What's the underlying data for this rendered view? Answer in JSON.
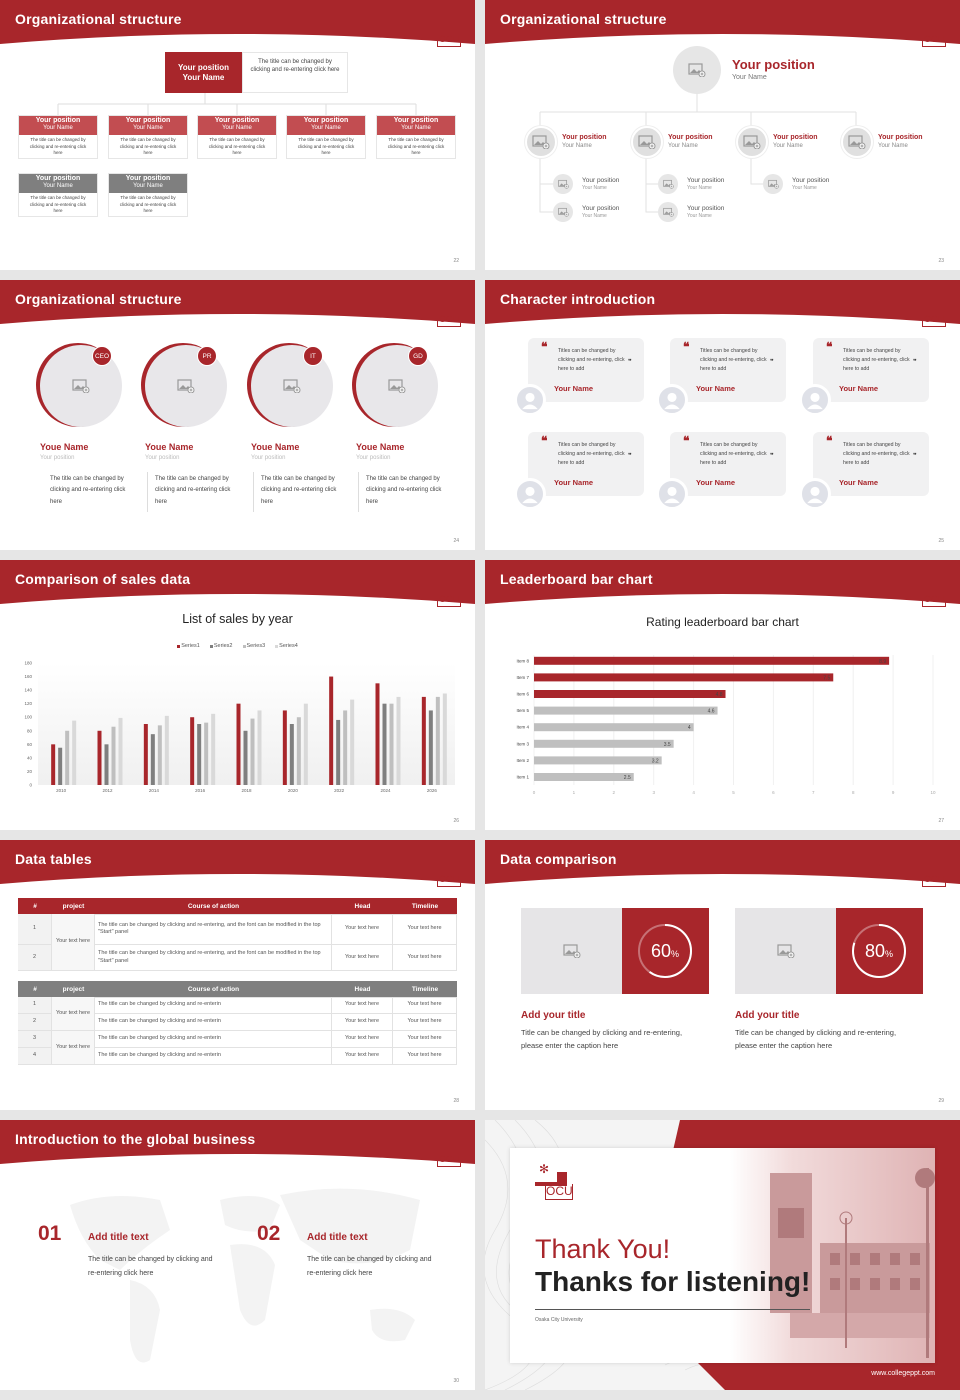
{
  "colors": {
    "primary": "#a8262b",
    "primary_light": "#c24d51",
    "gray": "#7f7f7f",
    "light_gray": "#bfbfbf"
  },
  "logo_text": "OCU",
  "s22": {
    "title": "Organizational structure",
    "page": "22",
    "top": {
      "position": "Your position",
      "name": "Your Name",
      "desc": "The title can be changed by clicking and re-entering click here"
    },
    "row1": [
      {
        "position": "Your position",
        "name": "Your Name",
        "desc": "The title can be changed by clicking and re-entering click here"
      },
      {
        "position": "Your position",
        "name": "Your Name",
        "desc": "The title can be changed by clicking and re-entering click here"
      },
      {
        "position": "Your position",
        "name": "Your Name",
        "desc": "The title can be changed by clicking and re-entering click here"
      },
      {
        "position": "Your position",
        "name": "Your Name",
        "desc": "The title can be changed by clicking and re-entering click here"
      },
      {
        "position": "Your position",
        "name": "Your Name",
        "desc": "The title can be changed by clicking and re-entering click here"
      }
    ],
    "row2": [
      {
        "position": "Your position",
        "name": "Your Name",
        "desc": "The title can be changed by clicking and re-entering click here"
      },
      {
        "position": "Your position",
        "name": "Your Name",
        "desc": "The title can be changed by clicking and re-entering click here"
      }
    ]
  },
  "s23": {
    "title": "Organizational structure",
    "page": "23",
    "top": {
      "position": "Your position",
      "name": "Your Name"
    },
    "level2": [
      {
        "position": "Your position",
        "name": "Your Name"
      },
      {
        "position": "Your position",
        "name": "Your Name"
      },
      {
        "position": "Your position",
        "name": "Your Name"
      },
      {
        "position": "Your position",
        "name": "Your Name"
      }
    ],
    "level3": [
      {
        "position": "Your position",
        "name": "Your Name"
      },
      {
        "position": "Your position",
        "name": "Your Name"
      },
      {
        "position": "Your position",
        "name": "Your Name"
      },
      {
        "position": "Your position",
        "name": "Your Name"
      },
      {
        "position": "Your position",
        "name": "Your Name"
      }
    ]
  },
  "s24": {
    "title": "Organizational structure",
    "page": "24",
    "people": [
      {
        "badge": "CEO",
        "name": "Youe Name",
        "position": "Your position",
        "desc": "The title can be changed by clicking and re-entering click here"
      },
      {
        "badge": "PR",
        "name": "Youe Name",
        "position": "Your position",
        "desc": "The title can be changed by clicking and re-entering click here"
      },
      {
        "badge": "IT",
        "name": "Youe Name",
        "position": "Your position",
        "desc": "The title can be changed by clicking and re-entering click here"
      },
      {
        "badge": "GD",
        "name": "Youe Name",
        "position": "Your position",
        "desc": "The title can be changed by clicking and re-entering click here"
      }
    ]
  },
  "s25": {
    "title": "Character introduction",
    "page": "25",
    "cards": [
      {
        "quote": "Titles can be changed by clicking and re-entering, click here to add",
        "name": "Your Name"
      },
      {
        "quote": "Titles can be changed by clicking and re-entering, click here to add",
        "name": "Your Name"
      },
      {
        "quote": "Titles can be changed by clicking and re-entering, click here to add",
        "name": "Your Name"
      },
      {
        "quote": "Titles can be changed by clicking and re-entering, click here to add",
        "name": "Your Name"
      },
      {
        "quote": "Titles can be changed by clicking and re-entering, click here to add",
        "name": "Your Name"
      },
      {
        "quote": "Titles can be changed by clicking and re-entering, click here to add",
        "name": "Your Name"
      }
    ]
  },
  "s26": {
    "title": "Comparison of sales data",
    "page": "26"
  },
  "s27": {
    "title": "Leaderboard bar chart",
    "page": "27"
  },
  "chart_data": [
    {
      "type": "bar",
      "title": "List of sales by year",
      "categories": [
        "2010",
        "2012",
        "2014",
        "2016",
        "2018",
        "2020",
        "2022",
        "2024",
        "2026"
      ],
      "series": [
        {
          "name": "Series1",
          "color": "#a8262b",
          "values": [
            60,
            80,
            90,
            100,
            120,
            110,
            160,
            150,
            130
          ]
        },
        {
          "name": "Series2",
          "color": "#7f7f7f",
          "values": [
            55,
            60,
            75,
            90,
            80,
            90,
            96,
            120,
            110
          ]
        },
        {
          "name": "Series3",
          "color": "#bfbfbf",
          "values": [
            80,
            86,
            88,
            92,
            98,
            100,
            110,
            120,
            130
          ]
        },
        {
          "name": "Series4",
          "color": "#d9d9d9",
          "values": [
            95,
            99,
            102,
            105,
            110,
            120,
            126,
            130,
            135
          ]
        }
      ],
      "ylim": [
        0,
        180
      ],
      "yticks": [
        0,
        20,
        40,
        60,
        80,
        100,
        120,
        140,
        160,
        180
      ],
      "legend": "top",
      "grid": false
    },
    {
      "type": "bar",
      "orientation": "horizontal",
      "title": "Rating leaderboard bar chart",
      "categories": [
        "Item 1",
        "Item 2",
        "Item 3",
        "Item 4",
        "Item 5",
        "Item 6",
        "Item 7",
        "Item 8"
      ],
      "values": [
        2.5,
        3.2,
        3.5,
        4,
        4.6,
        4.8,
        7.5,
        8.9
      ],
      "colors": [
        "#bfbfbf",
        "#bfbfbf",
        "#bfbfbf",
        "#bfbfbf",
        "#bfbfbf",
        "#a8262b",
        "#a8262b",
        "#a8262b"
      ],
      "xlim": [
        0,
        10
      ],
      "xticks": [
        0,
        1,
        2,
        3,
        4,
        5,
        6,
        7,
        8,
        9,
        10
      ],
      "grid": true
    }
  ],
  "s28": {
    "title": "Data tables",
    "page": "28",
    "headers": [
      "#",
      "project",
      "Course of action",
      "Head",
      "Timeline"
    ],
    "t1": {
      "project": "Your text here",
      "rows": [
        {
          "n": "1",
          "course": "The title can be changed by clicking and re-entering, and the font can be modified in the top \"Start\" panel",
          "head": "Your text here",
          "timeline": "Your text here"
        },
        {
          "n": "2",
          "course": "The title can be changed by clicking and re-entering, and the font can be modified in the top \"Start\" panel",
          "head": "Your text here",
          "timeline": "Your text here"
        }
      ]
    },
    "t2": {
      "projects": [
        "Your text here",
        "Your text here"
      ],
      "rows": [
        {
          "n": "1",
          "course": "The title can be changed by clicking and re-enterin",
          "head": "Your text here",
          "timeline": "Your text here"
        },
        {
          "n": "2",
          "course": "The title can be changed by clicking and re-enterin",
          "head": "Your text here",
          "timeline": "Your text here"
        },
        {
          "n": "3",
          "course": "The title can be changed by clicking and re-enterin",
          "head": "Your text here",
          "timeline": "Your text here"
        },
        {
          "n": "4",
          "course": "The title can be changed by clicking and re-enterin",
          "head": "Your text here",
          "timeline": "Your text here"
        }
      ]
    }
  },
  "s29": {
    "title": "Data comparison",
    "page": "29",
    "items": [
      {
        "value": 60,
        "label": "60",
        "unit": "%",
        "title": "Add your title",
        "desc": "Title can be changed by clicking and re-entering, please enter the caption here"
      },
      {
        "value": 80,
        "label": "80",
        "unit": "%",
        "title": "Add your title",
        "desc": "Title can be changed by clicking and re-entering, please enter the caption here"
      }
    ]
  },
  "s30": {
    "title": "Introduction to the global business",
    "page": "30",
    "items": [
      {
        "num": "01",
        "title": "Add title text",
        "desc": "The title can be changed by clicking and re-entering click here"
      },
      {
        "num": "02",
        "title": "Add title text",
        "desc": "The title can be changed by clicking and re-entering click here"
      }
    ]
  },
  "s31": {
    "thank": "Thank You!",
    "thanks": "Thanks for listening!",
    "university": "Osaka City University",
    "url": "www.collegeppt.com"
  }
}
